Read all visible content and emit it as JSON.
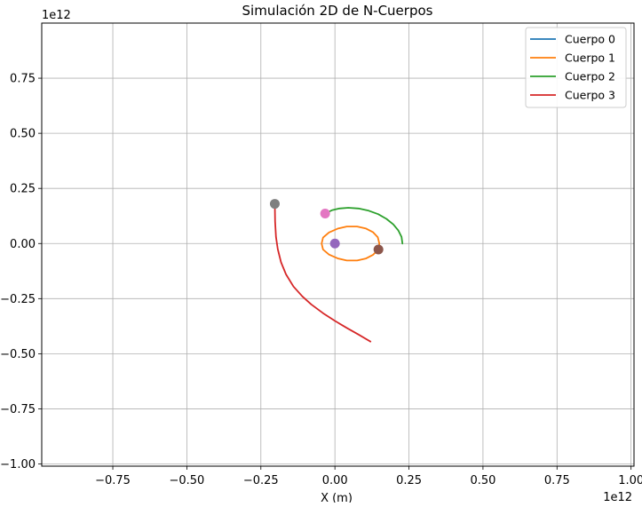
{
  "chart_data": {
    "type": "line",
    "title": "Simulación 2D de N-Cuerpos",
    "xlabel": "X (m)",
    "ylabel": "",
    "x_offset_label": "1e12",
    "y_offset_label": "1e12",
    "xlim": [
      -0.99,
      1.01
    ],
    "ylim": [
      -1.01,
      1.0
    ],
    "xticks": [
      -0.75,
      -0.5,
      -0.25,
      0.0,
      0.25,
      0.5,
      0.75,
      1.0
    ],
    "xtick_labels": [
      "−0.75",
      "−0.50",
      "−0.25",
      "0.00",
      "0.25",
      "0.50",
      "0.75",
      "1.00"
    ],
    "yticks": [
      -1.0,
      -0.75,
      -0.5,
      -0.25,
      0.0,
      0.25,
      0.5,
      0.75
    ],
    "ytick_labels": [
      "−1.00",
      "−0.75",
      "−0.50",
      "−0.25",
      "0.00",
      "0.25",
      "0.50",
      "0.75"
    ],
    "grid": true,
    "legend_position": "top-right",
    "series": [
      {
        "name": "Cuerpo 0",
        "color": "#1f77b4",
        "points": [
          [
            0.0,
            0.0
          ],
          [
            0.0,
            0.0
          ]
        ],
        "final_position": [
          0.0,
          0.0
        ],
        "marker_color": "#9467bd"
      },
      {
        "name": "Cuerpo 1",
        "color": "#ff7f0e",
        "points": [
          [
            0.147,
            -0.027
          ],
          [
            0.15,
            0.0
          ],
          [
            0.145,
            0.028
          ],
          [
            0.129,
            0.051
          ],
          [
            0.105,
            0.068
          ],
          [
            0.075,
            0.077
          ],
          [
            0.04,
            0.077
          ],
          [
            0.01,
            0.068
          ],
          [
            -0.02,
            0.05
          ],
          [
            -0.04,
            0.027
          ],
          [
            -0.045,
            0.0
          ],
          [
            -0.04,
            -0.027
          ],
          [
            -0.02,
            -0.05
          ],
          [
            0.01,
            -0.068
          ],
          [
            0.04,
            -0.077
          ],
          [
            0.075,
            -0.077
          ],
          [
            0.105,
            -0.068
          ],
          [
            0.129,
            -0.051
          ],
          [
            0.145,
            -0.03
          ],
          [
            0.147,
            -0.027
          ]
        ],
        "final_position": [
          0.147,
          -0.027
        ],
        "marker_color": "#8c564b"
      },
      {
        "name": "Cuerpo 2",
        "color": "#2ca02c",
        "points": [
          [
            0.228,
            0.0
          ],
          [
            0.225,
            0.03
          ],
          [
            0.214,
            0.06
          ],
          [
            0.197,
            0.087
          ],
          [
            0.174,
            0.112
          ],
          [
            0.146,
            0.133
          ],
          [
            0.114,
            0.149
          ],
          [
            0.08,
            0.159
          ],
          [
            0.045,
            0.162
          ],
          [
            0.015,
            0.159
          ],
          [
            -0.01,
            0.151
          ],
          [
            -0.03,
            0.138
          ]
        ],
        "final_position": [
          -0.033,
          0.136
        ],
        "marker_color": "#e377c2"
      },
      {
        "name": "Cuerpo 3",
        "color": "#d62728",
        "points": [
          [
            0.12,
            -0.445
          ],
          [
            0.08,
            -0.413
          ],
          [
            0.04,
            -0.383
          ],
          [
            0.0,
            -0.351
          ],
          [
            -0.04,
            -0.316
          ],
          [
            -0.08,
            -0.276
          ],
          [
            -0.11,
            -0.24
          ],
          [
            -0.14,
            -0.195
          ],
          [
            -0.165,
            -0.14
          ],
          [
            -0.182,
            -0.085
          ],
          [
            -0.193,
            -0.025
          ],
          [
            -0.199,
            0.03
          ],
          [
            -0.202,
            0.1
          ],
          [
            -0.203,
            0.18
          ]
        ],
        "final_position": [
          -0.203,
          0.18
        ],
        "marker_color": "#7f7f7f"
      }
    ]
  }
}
